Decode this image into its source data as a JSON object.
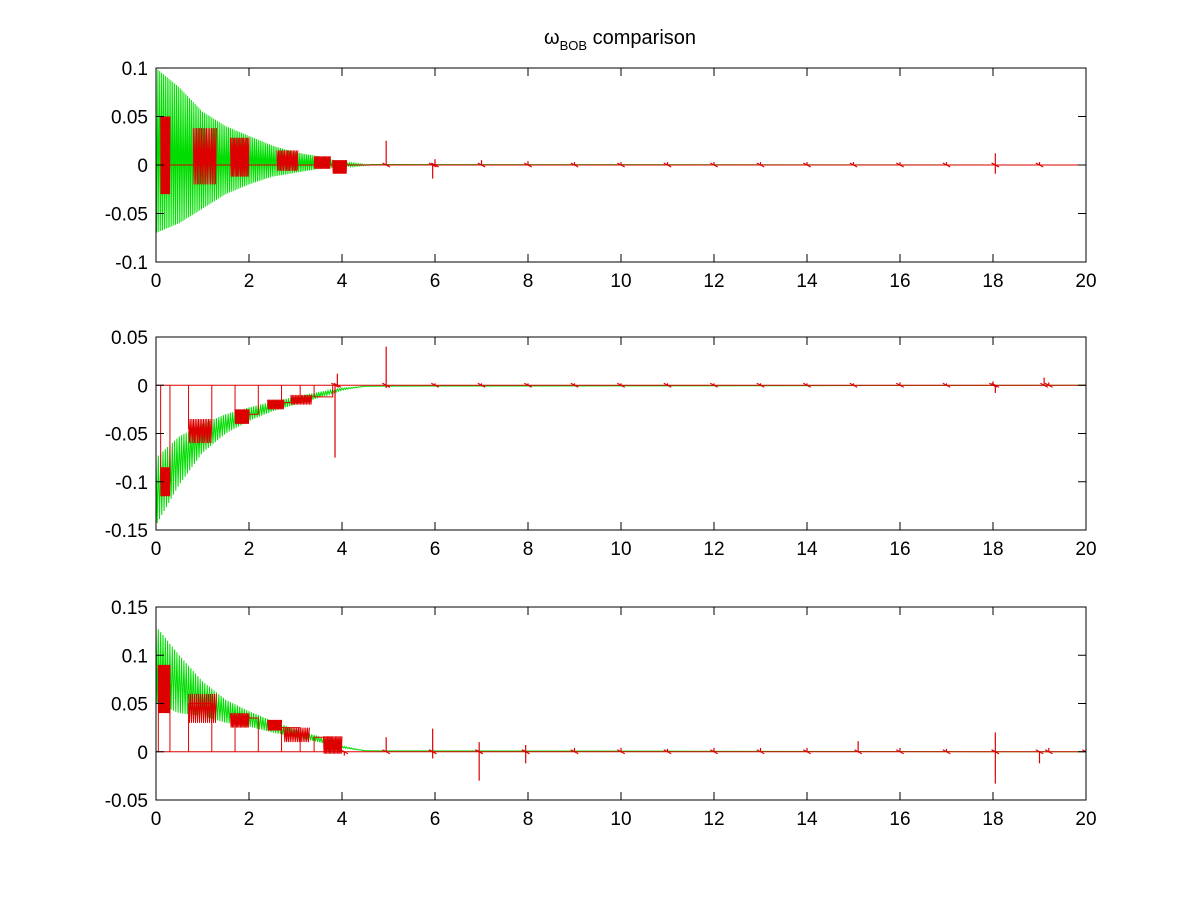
{
  "chart_data": [
    {
      "type": "line",
      "title": {
        "symbol": "ω",
        "subscript": "BOB",
        "text": " comparison"
      },
      "xlim": [
        0,
        20
      ],
      "ylim": [
        -0.1,
        0.1
      ],
      "x_ticks": [
        0,
        2,
        4,
        6,
        8,
        10,
        12,
        14,
        16,
        18,
        20
      ],
      "y_ticks": [
        -0.1,
        -0.05,
        0,
        0.05,
        0.1
      ],
      "x_tick_labels": [
        "0",
        "2",
        "4",
        "6",
        "8",
        "10",
        "12",
        "14",
        "16",
        "18",
        "20"
      ],
      "y_tick_labels": [
        "-0.1",
        "-0.05",
        "0",
        "0.05",
        "0.1"
      ],
      "grid": false,
      "legend": "none",
      "series": [
        {
          "color": "#00dd00",
          "description": "decaying oscillation around 0 that damps out by x≈4",
          "envelope_upper": [
            [
              0,
              0.1
            ],
            [
              0.5,
              0.08
            ],
            [
              1,
              0.055
            ],
            [
              1.5,
              0.04
            ],
            [
              2,
              0.03
            ],
            [
              2.5,
              0.02
            ],
            [
              3,
              0.013
            ],
            [
              3.5,
              0.009
            ],
            [
              4,
              0.003
            ],
            [
              4.5,
              0.0005
            ],
            [
              20,
              0
            ]
          ],
          "envelope_lower": [
            [
              0,
              -0.07
            ],
            [
              0.5,
              -0.06
            ],
            [
              1,
              -0.045
            ],
            [
              1.5,
              -0.03
            ],
            [
              2,
              -0.02
            ],
            [
              2.5,
              -0.012
            ],
            [
              3,
              -0.008
            ],
            [
              3.5,
              -0.004
            ],
            [
              4,
              -0.002
            ],
            [
              4.5,
              -0.0005
            ],
            [
              20,
              0
            ]
          ],
          "baseline": [
            [
              0,
              0
            ],
            [
              20,
              0
            ]
          ]
        },
        {
          "color": "#dd0000",
          "description": "intermittent oscillation bursts tracking the green curve, then small spikes",
          "bursts": [
            [
              0.1,
              0.3,
              0.05,
              -0.03,
              0
            ],
            [
              0.8,
              1.3,
              0.038,
              -0.02,
              0
            ],
            [
              1.6,
              2.0,
              0.028,
              -0.012,
              0
            ],
            [
              2.6,
              3.05,
              0.015,
              -0.006,
              0
            ],
            [
              3.4,
              3.75,
              0.009,
              -0.004,
              0
            ],
            [
              3.8,
              4.1,
              0.005,
              -0.009,
              0
            ]
          ],
          "spikes": [
            [
              4.95,
              0.025
            ],
            [
              5.95,
              -0.014
            ],
            [
              6.0,
              0.006
            ],
            [
              7.0,
              0.005
            ],
            [
              8.0,
              0.004
            ],
            [
              9.0,
              0.003
            ],
            [
              10.0,
              0.003
            ],
            [
              11.0,
              0.003
            ],
            [
              12.0,
              0.003
            ],
            [
              13.0,
              0.003
            ],
            [
              14.0,
              0.003
            ],
            [
              15.0,
              0.003
            ],
            [
              16.0,
              0.003
            ],
            [
              17.0,
              0.003
            ],
            [
              18.05,
              0.012
            ],
            [
              18.05,
              -0.009
            ],
            [
              19.0,
              0.003
            ]
          ],
          "baseline": [
            [
              0,
              0
            ],
            [
              20,
              0
            ]
          ]
        }
      ]
    },
    {
      "type": "line",
      "xlim": [
        0,
        20
      ],
      "ylim": [
        -0.15,
        0.05
      ],
      "x_ticks": [
        0,
        2,
        4,
        6,
        8,
        10,
        12,
        14,
        16,
        18,
        20
      ],
      "y_ticks": [
        -0.15,
        -0.1,
        -0.05,
        0,
        0.05
      ],
      "x_tick_labels": [
        "0",
        "2",
        "4",
        "6",
        "8",
        "10",
        "12",
        "14",
        "16",
        "18",
        "20"
      ],
      "y_tick_labels": [
        "-0.15",
        "-0.1",
        "-0.05",
        "0",
        "0.05"
      ],
      "grid": false,
      "legend": "none",
      "series": [
        {
          "color": "#00dd00",
          "description": "oscillation around a rising trend from about -0.11 to 0 by x≈4.5",
          "trend": [
            [
              0,
              -0.11
            ],
            [
              0.5,
              -0.078
            ],
            [
              1,
              -0.055
            ],
            [
              1.5,
              -0.04
            ],
            [
              2,
              -0.03
            ],
            [
              2.5,
              -0.022
            ],
            [
              3,
              -0.016
            ],
            [
              3.5,
              -0.01
            ],
            [
              4,
              -0.004
            ],
            [
              4.5,
              -0.001
            ],
            [
              20,
              0
            ]
          ],
          "amplitude": [
            [
              0,
              0.035
            ],
            [
              0.5,
              0.025
            ],
            [
              1,
              0.015
            ],
            [
              1.5,
              0.01
            ],
            [
              2,
              0.007
            ],
            [
              2.5,
              0.005
            ],
            [
              3,
              0.004
            ],
            [
              3.5,
              0.003
            ],
            [
              4,
              0.001
            ],
            [
              4.5,
              0
            ],
            [
              20,
              0
            ]
          ]
        },
        {
          "color": "#dd0000",
          "description": "square gating pulses between 0 and the green trend with oscillations, spikes after x≈4",
          "pulses": [
            [
              0.1,
              0.3,
              -0.1
            ],
            [
              0.7,
              1.2,
              -0.045
            ],
            [
              1.7,
              2.2,
              -0.03
            ],
            [
              2.7,
              3.1,
              -0.018
            ],
            [
              3.4,
              3.8,
              -0.012
            ]
          ],
          "bursts": [
            [
              0.1,
              0.3,
              -0.085,
              -0.115
            ],
            [
              0.7,
              1.2,
              -0.035,
              -0.06
            ],
            [
              1.7,
              2.0,
              -0.025,
              -0.04
            ],
            [
              2.4,
              2.75,
              -0.015,
              -0.025
            ],
            [
              2.9,
              3.35,
              -0.01,
              -0.02
            ]
          ],
          "spikes": [
            [
              3.85,
              -0.075
            ],
            [
              3.9,
              0.012
            ],
            [
              4.95,
              0.04
            ],
            [
              4.95,
              -0.003
            ],
            [
              6.0,
              0.002
            ],
            [
              7.0,
              0.002
            ],
            [
              8.0,
              0.002
            ],
            [
              9.0,
              0.002
            ],
            [
              10.0,
              0.002
            ],
            [
              11.0,
              0.002
            ],
            [
              12.0,
              0.002
            ],
            [
              13.0,
              0.002
            ],
            [
              14.0,
              0.002
            ],
            [
              15.0,
              0.002
            ],
            [
              16.0,
              0.003
            ],
            [
              17.0,
              0.002
            ],
            [
              18.0,
              0.004
            ],
            [
              18.05,
              -0.008
            ],
            [
              19.1,
              0.008
            ],
            [
              19.2,
              0.003
            ]
          ],
          "baseline": [
            [
              0,
              0
            ],
            [
              20,
              0
            ]
          ]
        }
      ]
    },
    {
      "type": "line",
      "xlim": [
        0,
        20
      ],
      "ylim": [
        -0.05,
        0.15
      ],
      "x_ticks": [
        0,
        2,
        4,
        6,
        8,
        10,
        12,
        14,
        16,
        18,
        20
      ],
      "y_ticks": [
        -0.05,
        0,
        0.05,
        0.1,
        0.15
      ],
      "x_tick_labels": [
        "0",
        "2",
        "4",
        "6",
        "8",
        "10",
        "12",
        "14",
        "16",
        "18",
        "20"
      ],
      "y_tick_labels": [
        "-0.05",
        "0",
        "0.05",
        "0.1",
        "0.15"
      ],
      "grid": false,
      "legend": "none",
      "series": [
        {
          "color": "#00dd00",
          "description": "oscillation around a decaying trend from about 0.09 to 0 by x≈4.5",
          "trend": [
            [
              0,
              0.09
            ],
            [
              0.5,
              0.07
            ],
            [
              1,
              0.055
            ],
            [
              1.5,
              0.042
            ],
            [
              2,
              0.034
            ],
            [
              2.5,
              0.026
            ],
            [
              3,
              0.019
            ],
            [
              3.5,
              0.013
            ],
            [
              4,
              0.005
            ],
            [
              4.5,
              0.001
            ],
            [
              20,
              0
            ]
          ],
          "amplitude": [
            [
              0,
              0.04
            ],
            [
              0.5,
              0.03
            ],
            [
              1,
              0.018
            ],
            [
              1.5,
              0.012
            ],
            [
              2,
              0.008
            ],
            [
              2.5,
              0.006
            ],
            [
              3,
              0.004
            ],
            [
              3.5,
              0.003
            ],
            [
              4,
              0.001
            ],
            [
              4.5,
              0
            ],
            [
              20,
              0
            ]
          ]
        },
        {
          "color": "#dd0000",
          "description": "square gating pulses between 0 and the green trend with oscillations, spikes after x≈4",
          "pulses": [
            [
              0.05,
              0.3,
              0.07
            ],
            [
              0.7,
              1.2,
              0.05
            ],
            [
              1.7,
              2.2,
              0.035
            ],
            [
              2.7,
              3.1,
              0.025
            ],
            [
              3.4,
              3.75,
              0.015
            ]
          ],
          "bursts": [
            [
              0.05,
              0.3,
              0.09,
              0.04
            ],
            [
              0.7,
              1.3,
              0.06,
              0.03
            ],
            [
              1.6,
              2.0,
              0.04,
              0.025
            ],
            [
              2.4,
              2.7,
              0.033,
              0.022
            ],
            [
              2.75,
              3.3,
              0.025,
              0.01
            ],
            [
              3.6,
              4.0,
              0.016,
              -0.002
            ]
          ],
          "spikes": [
            [
              4.05,
              -0.004
            ],
            [
              4.95,
              0.015
            ],
            [
              5.95,
              0.024
            ],
            [
              5.95,
              -0.007
            ],
            [
              6.95,
              0.01
            ],
            [
              6.95,
              -0.03
            ],
            [
              7.95,
              0.007
            ],
            [
              7.95,
              -0.012
            ],
            [
              9.0,
              0.004
            ],
            [
              10.0,
              0.004
            ],
            [
              11.0,
              0.003
            ],
            [
              12.0,
              0.004
            ],
            [
              13.0,
              0.004
            ],
            [
              14.0,
              0.004
            ],
            [
              15.1,
              0.011
            ],
            [
              16.0,
              0.004
            ],
            [
              17.0,
              0.003
            ],
            [
              18.05,
              0.02
            ],
            [
              18.05,
              -0.033
            ],
            [
              19.0,
              -0.012
            ],
            [
              19.2,
              0.004
            ],
            [
              20.0,
              0.003
            ]
          ],
          "baseline": [
            [
              0,
              0
            ],
            [
              20,
              0
            ]
          ]
        }
      ]
    }
  ]
}
